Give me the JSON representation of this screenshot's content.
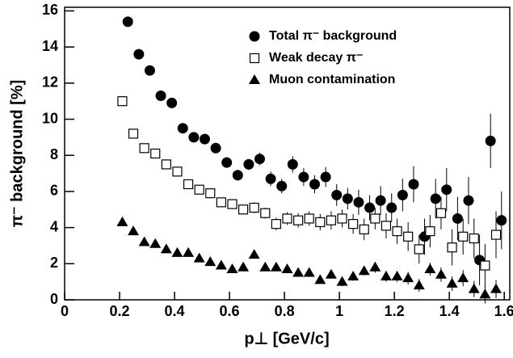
{
  "chart_data": {
    "type": "scatter",
    "xlabel": "p⊥ [GeV/c]",
    "ylabel": "π⁻ background [%]",
    "xlim": [
      0,
      1.62
    ],
    "ylim": [
      0,
      16.2
    ],
    "xticks": [
      0,
      0.2,
      0.4,
      0.6,
      0.8,
      1,
      1.2,
      1.4,
      1.6
    ],
    "yticks": [
      0,
      2,
      4,
      6,
      8,
      10,
      12,
      14,
      16
    ],
    "legend": "upper right",
    "series": [
      {
        "name": "Total π⁻ background",
        "color": "#000000",
        "marker": "circle",
        "x": [
          0.23,
          0.27,
          0.31,
          0.35,
          0.39,
          0.43,
          0.47,
          0.51,
          0.55,
          0.59,
          0.63,
          0.67,
          0.71,
          0.75,
          0.79,
          0.83,
          0.87,
          0.91,
          0.95,
          0.99,
          1.03,
          1.07,
          1.11,
          1.15,
          1.19,
          1.23,
          1.27,
          1.31,
          1.35,
          1.39,
          1.43,
          1.47,
          1.51,
          1.55,
          1.59
        ],
        "values": [
          15.4,
          13.6,
          12.7,
          11.3,
          10.9,
          9.5,
          9.0,
          8.9,
          8.4,
          7.6,
          6.9,
          7.5,
          7.8,
          6.7,
          6.3,
          7.5,
          6.8,
          6.4,
          6.8,
          5.8,
          5.6,
          5.4,
          5.1,
          5.5,
          5.1,
          5.8,
          6.4,
          3.5,
          5.6,
          6.1,
          4.5,
          5.5,
          2.2,
          8.8,
          4.4
        ],
        "errors": [
          0.1,
          0.1,
          0.1,
          0.1,
          0.1,
          0.15,
          0.15,
          0.2,
          0.2,
          0.25,
          0.3,
          0.3,
          0.35,
          0.4,
          0.4,
          0.45,
          0.5,
          0.5,
          0.55,
          0.6,
          0.6,
          0.7,
          0.7,
          0.8,
          0.8,
          0.9,
          1.0,
          1.0,
          1.1,
          1.2,
          1.2,
          1.3,
          1.4,
          1.5,
          1.6
        ]
      },
      {
        "name": "Weak decay π⁻",
        "color": "#000000",
        "marker": "square",
        "x": [
          0.21,
          0.25,
          0.29,
          0.33,
          0.37,
          0.41,
          0.45,
          0.49,
          0.53,
          0.57,
          0.61,
          0.65,
          0.69,
          0.73,
          0.77,
          0.81,
          0.85,
          0.89,
          0.93,
          0.97,
          1.01,
          1.05,
          1.09,
          1.13,
          1.17,
          1.21,
          1.25,
          1.29,
          1.33,
          1.37,
          1.41,
          1.45,
          1.49,
          1.53,
          1.57
        ],
        "values": [
          11.0,
          9.2,
          8.4,
          8.1,
          7.5,
          7.1,
          6.4,
          6.1,
          5.9,
          5.4,
          5.3,
          5.0,
          5.1,
          4.8,
          4.2,
          4.5,
          4.4,
          4.5,
          4.3,
          4.4,
          4.5,
          4.2,
          3.9,
          4.5,
          4.1,
          3.8,
          3.5,
          2.8,
          3.8,
          4.8,
          2.9,
          3.5,
          3.4,
          1.9,
          3.6
        ],
        "errors": [
          0.1,
          0.1,
          0.1,
          0.1,
          0.1,
          0.1,
          0.15,
          0.15,
          0.2,
          0.2,
          0.25,
          0.25,
          0.3,
          0.3,
          0.35,
          0.35,
          0.4,
          0.4,
          0.45,
          0.5,
          0.5,
          0.55,
          0.6,
          0.6,
          0.7,
          0.7,
          0.8,
          0.8,
          0.9,
          0.9,
          1.0,
          1.0,
          1.1,
          1.2,
          1.3
        ]
      },
      {
        "name": "Muon contamination",
        "color": "#000000",
        "marker": "triangle",
        "x": [
          0.21,
          0.25,
          0.29,
          0.33,
          0.37,
          0.41,
          0.45,
          0.49,
          0.53,
          0.57,
          0.61,
          0.65,
          0.69,
          0.73,
          0.77,
          0.81,
          0.85,
          0.89,
          0.93,
          0.97,
          1.01,
          1.05,
          1.09,
          1.13,
          1.17,
          1.21,
          1.25,
          1.29,
          1.33,
          1.37,
          1.41,
          1.45,
          1.49,
          1.53,
          1.57
        ],
        "values": [
          4.3,
          3.8,
          3.2,
          3.1,
          2.8,
          2.6,
          2.6,
          2.3,
          2.1,
          1.9,
          1.7,
          1.8,
          2.5,
          1.8,
          1.8,
          1.7,
          1.5,
          1.5,
          1.1,
          1.4,
          1.0,
          1.3,
          1.6,
          1.8,
          1.3,
          1.3,
          1.2,
          0.8,
          1.7,
          1.4,
          0.9,
          1.2,
          0.6,
          0.3,
          0.6
        ],
        "errors": [
          0.05,
          0.05,
          0.05,
          0.05,
          0.05,
          0.05,
          0.1,
          0.1,
          0.1,
          0.1,
          0.1,
          0.1,
          0.15,
          0.15,
          0.15,
          0.15,
          0.2,
          0.2,
          0.2,
          0.2,
          0.25,
          0.25,
          0.25,
          0.3,
          0.3,
          0.3,
          0.35,
          0.35,
          0.35,
          0.4,
          0.4,
          0.45,
          0.45,
          0.5,
          0.5
        ]
      }
    ]
  }
}
